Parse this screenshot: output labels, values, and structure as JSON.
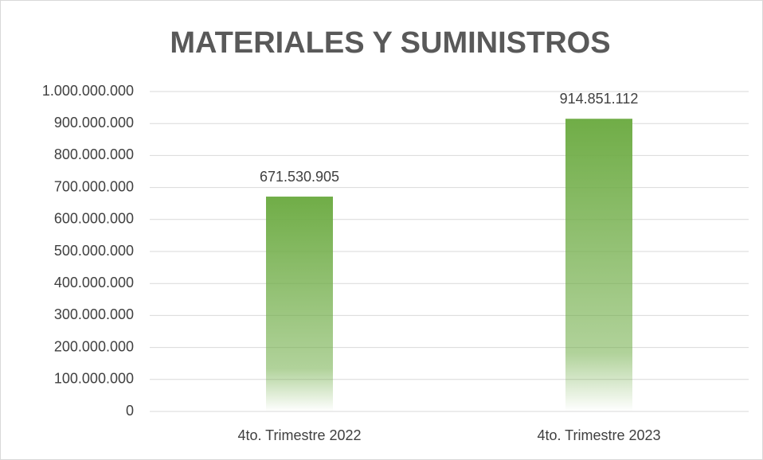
{
  "chart_data": {
    "type": "bar",
    "title": "MATERIALES Y SUMINISTROS",
    "categories": [
      "4to. Trimestre 2022",
      "4to. Trimestre 2023"
    ],
    "values": [
      671530905,
      914851112
    ],
    "value_labels": [
      "671.530.905",
      "914.851.112"
    ],
    "color": "#70ad47",
    "ylim": [
      0,
      1000000000
    ],
    "yticks": [
      0,
      {
        "value": 100000000,
        "label": "100.000.000"
      },
      {
        "value": 200000000,
        "label": "200.000.000"
      },
      {
        "value": 300000000,
        "label": "300.000.000"
      },
      {
        "value": 400000000,
        "label": "400.000.000"
      },
      {
        "value": 500000000,
        "label": "500.000.000"
      },
      {
        "value": 600000000,
        "label": "600.000.000"
      },
      {
        "value": 700000000,
        "label": "700.000.000"
      },
      {
        "value": 800000000,
        "label": "800.000.000"
      },
      {
        "value": 900000000,
        "label": "900.000.000"
      },
      {
        "value": 1000000000,
        "label": "1.000.000.000"
      }
    ],
    "grid": true
  }
}
